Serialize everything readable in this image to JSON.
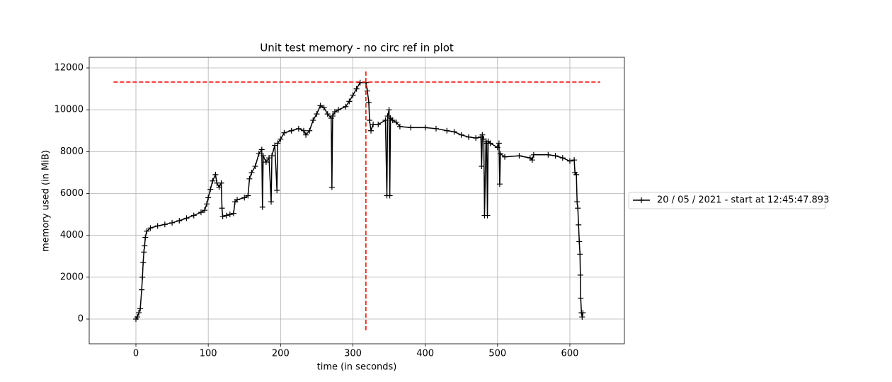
{
  "chart_data": {
    "type": "line",
    "title": "Unit test memory - no circ ref in plot",
    "xlabel": "time (in seconds)",
    "ylabel": "memory used (in MiB)",
    "xlim": [
      -64.6,
      675.4
    ],
    "ylim": [
      -1183,
      12508
    ],
    "xticks": [
      0,
      100,
      200,
      300,
      400,
      500,
      600
    ],
    "yticks": [
      0,
      2000,
      4000,
      6000,
      8000,
      10000,
      12000
    ],
    "grid": true,
    "legend": "outside right",
    "marker": "+",
    "series": [
      {
        "name": "20 / 05 / 2021 - start at 12:45:47.893",
        "color": "#000000",
        "x": [
          0,
          2,
          4,
          6,
          8,
          9,
          10,
          11,
          12,
          13,
          15,
          20,
          30,
          40,
          50,
          60,
          70,
          80,
          90,
          95,
          98,
          100,
          103,
          106,
          110,
          112,
          115,
          118,
          119,
          120,
          125,
          130,
          135,
          137,
          140,
          150,
          155,
          157,
          160,
          165,
          170,
          174,
          175,
          176,
          180,
          184,
          187,
          188,
          192,
          195,
          196,
          200,
          205,
          215,
          225,
          232,
          235,
          240,
          245,
          250,
          255,
          260,
          265,
          270,
          271,
          272,
          275,
          280,
          290,
          295,
          300,
          305,
          310,
          318,
          320,
          322,
          323,
          325,
          328,
          335,
          345,
          347,
          348,
          350,
          351,
          352,
          355,
          360,
          365,
          380,
          400,
          415,
          430,
          440,
          450,
          460,
          470,
          477,
          478,
          479,
          481,
          482,
          484,
          485,
          486,
          487,
          490,
          500,
          502,
          503,
          504,
          510,
          530,
          545,
          548,
          550,
          570,
          580,
          590,
          600,
          606,
          607,
          609,
          610,
          611,
          612,
          613,
          614,
          614.5,
          615,
          616,
          617,
          618
        ],
        "values": [
          0,
          100,
          300,
          500,
          1400,
          2000,
          2700,
          3200,
          3500,
          3900,
          4200,
          4350,
          4450,
          4520,
          4600,
          4700,
          4820,
          4950,
          5100,
          5200,
          5500,
          5800,
          6200,
          6600,
          6900,
          6500,
          6300,
          6500,
          5300,
          4900,
          4950,
          5000,
          5050,
          5600,
          5700,
          5800,
          5900,
          6700,
          7000,
          7300,
          7900,
          8100,
          5350,
          7800,
          7500,
          7700,
          5600,
          7800,
          8300,
          6150,
          8400,
          8600,
          8900,
          9000,
          9100,
          9000,
          8800,
          9000,
          9500,
          9800,
          10200,
          10100,
          9800,
          9600,
          6300,
          9700,
          9900,
          10000,
          10150,
          10400,
          10700,
          11000,
          11300,
          11300,
          10900,
          10350,
          9500,
          9000,
          9300,
          9300,
          9500,
          5900,
          9700,
          10000,
          5900,
          9600,
          9500,
          9400,
          9200,
          9150,
          9150,
          9100,
          9000,
          8950,
          8800,
          8700,
          8650,
          8700,
          7300,
          8800,
          8600,
          4950,
          8500,
          8400,
          4950,
          8500,
          8400,
          8200,
          8400,
          6450,
          7900,
          7750,
          7800,
          7700,
          7600,
          7850,
          7850,
          7800,
          7700,
          7550,
          7600,
          7000,
          6900,
          5600,
          5300,
          4500,
          3700,
          3100,
          2100,
          1000,
          300,
          100,
          300
        ]
      }
    ],
    "hline": {
      "y": 11325,
      "xmin": -31,
      "xmax": 642,
      "color": "#ff0000"
    },
    "vline": {
      "x": 318,
      "ymin": -541,
      "ymax": 11865,
      "color": "#ff0000"
    }
  }
}
